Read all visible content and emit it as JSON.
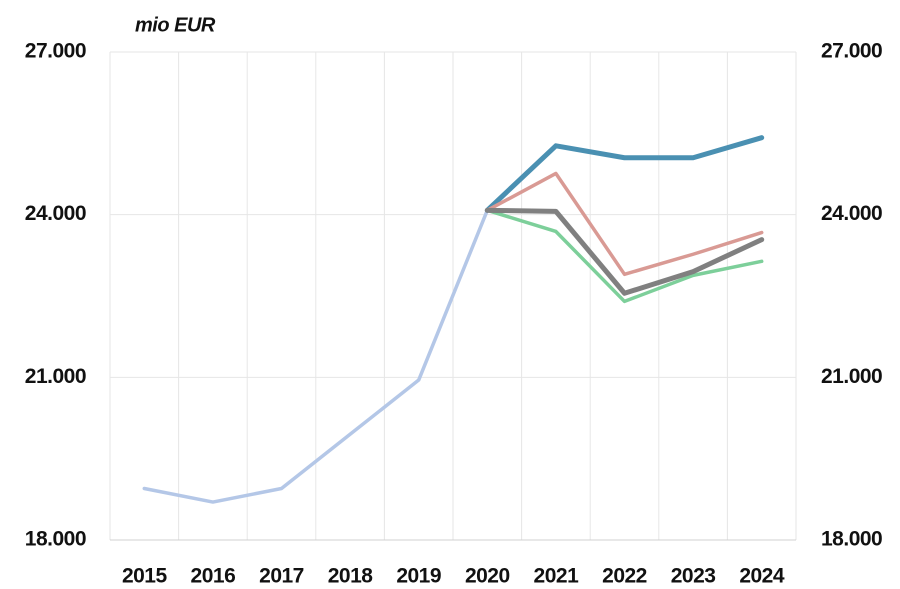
{
  "chart_data": {
    "type": "line",
    "y_label": "mio EUR",
    "categories": [
      "2015",
      "2016",
      "2017",
      "2018",
      "2019",
      "2020",
      "2021",
      "2022",
      "2023",
      "2024"
    ],
    "series": [
      {
        "color": "#b4c7e7",
        "values": [
          18950,
          18700,
          18950,
          19950,
          20950,
          24080,
          null,
          null,
          null,
          null
        ]
      },
      {
        "color": "#4a90b2",
        "values": [
          null,
          null,
          null,
          null,
          null,
          24080,
          25270,
          25050,
          25050,
          25420
        ]
      },
      {
        "color": "#d99a94",
        "values": [
          null,
          null,
          null,
          null,
          null,
          24080,
          24760,
          22900,
          23270,
          23670
        ]
      },
      {
        "color": "#7dcf9a",
        "values": [
          null,
          null,
          null,
          null,
          null,
          24080,
          23690,
          22400,
          22880,
          23140
        ]
      },
      {
        "color": "#808080",
        "values": [
          null,
          null,
          null,
          null,
          null,
          24080,
          24060,
          22550,
          22950,
          23540
        ]
      }
    ],
    "ylim": [
      18000,
      27000
    ],
    "yticks": [
      {
        "value": 18000,
        "label": "18.000"
      },
      {
        "value": 21000,
        "label": "21.000"
      },
      {
        "value": 24000,
        "label": "24.000"
      },
      {
        "value": 27000,
        "label": "27.000"
      }
    ],
    "y2lim": [
      18000,
      27000
    ],
    "y2ticks": [
      {
        "value": 18000,
        "label": "18.000"
      },
      {
        "value": 21000,
        "label": "21.000"
      },
      {
        "value": 24000,
        "label": "24.000"
      },
      {
        "value": 27000,
        "label": "27.000"
      }
    ],
    "grid": true
  }
}
